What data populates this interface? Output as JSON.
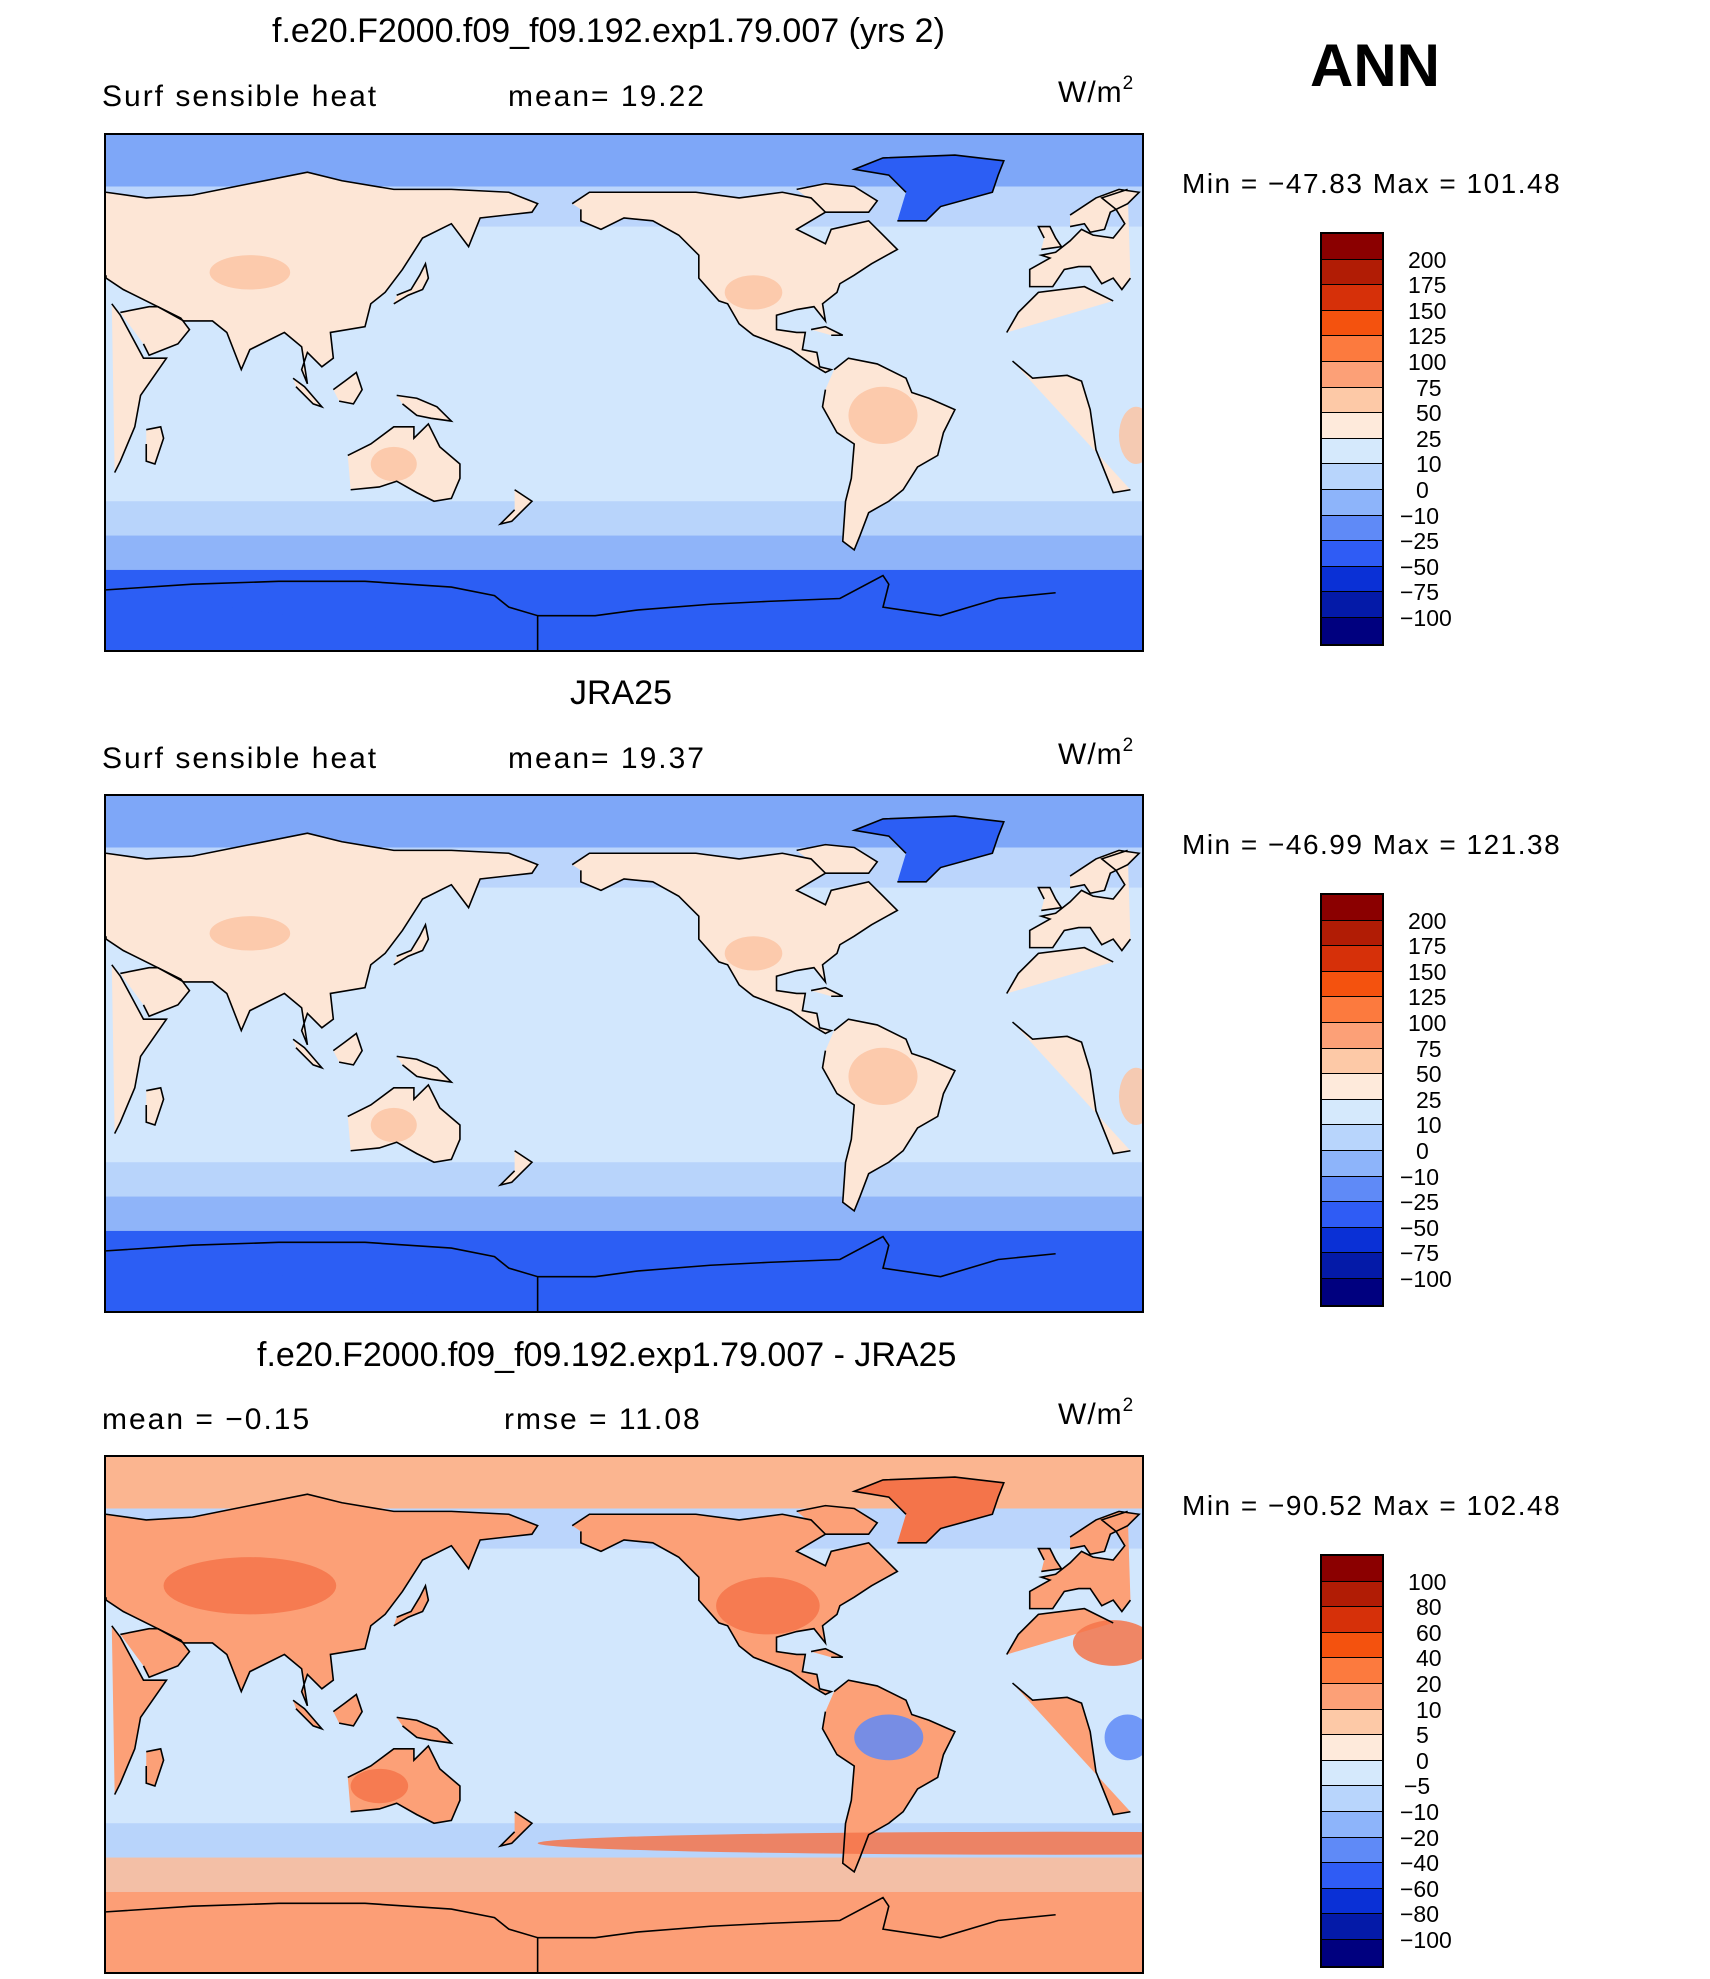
{
  "season": "ANN",
  "panels": [
    {
      "title": "f.e20.F2000.f09_f09.192.exp1.79.007 (yrs 2)",
      "left_label": "Surf sensible heat",
      "stat1": "mean=   19.22",
      "stat2": "",
      "unit": "W/m",
      "unit_sup": "2",
      "minmax": "Min  =  −47.83  Max  =  101.48",
      "colorbar": {
        "labels": [
          "200",
          "175",
          "150",
          "125",
          "100",
          "75",
          "50",
          "25",
          "10",
          "0",
          "−10",
          "−25",
          "−50",
          "−75",
          "−100"
        ],
        "colors": [
          "#8b0000",
          "#b11c05",
          "#d63009",
          "#f4520e",
          "#fc7a3e",
          "#fca077",
          "#fdc9a7",
          "#feeadb",
          "#d5e9fc",
          "#b8d5fc",
          "#8db4fa",
          "#5f8af7",
          "#2f5cf5",
          "#0a30d6",
          "#041aa8",
          "#00007f"
        ]
      },
      "map_colors": {
        "ocean": "#d2e7fd",
        "ocean_low": "#b5d1fb",
        "high_lat": "#7ea7f8",
        "polar": "#2c5ef4",
        "land": "#fde6d6",
        "warm": "#fcc4a4",
        "hot": "#fb9d74"
      }
    },
    {
      "title": "JRA25",
      "left_label": "Surf sensible heat",
      "stat1": "mean=   19.37",
      "stat2": "",
      "unit": "W/m",
      "unit_sup": "2",
      "minmax": "Min  =  −46.99  Max  =  121.38",
      "colorbar": {
        "labels": [
          "200",
          "175",
          "150",
          "125",
          "100",
          "75",
          "50",
          "25",
          "10",
          "0",
          "−10",
          "−25",
          "−50",
          "−75",
          "−100"
        ],
        "colors": [
          "#8b0000",
          "#b11c05",
          "#d63009",
          "#f4520e",
          "#fc7a3e",
          "#fca077",
          "#fdc9a7",
          "#feeadb",
          "#d5e9fc",
          "#b8d5fc",
          "#8db4fa",
          "#5f8af7",
          "#2f5cf5",
          "#0a30d6",
          "#041aa8",
          "#00007f"
        ]
      },
      "map_colors": {
        "ocean": "#d2e7fd",
        "ocean_low": "#b5d1fb",
        "high_lat": "#7ea7f8",
        "polar": "#2c5ef4",
        "land": "#fde6d6",
        "warm": "#fcc4a4",
        "hot": "#fb9d74"
      }
    },
    {
      "title": "f.e20.F2000.f09_f09.192.exp1.79.007 - JRA25",
      "left_label": "mean =    −0.15",
      "stat1": "rmse  =    11.08",
      "stat2": "",
      "unit": "W/m",
      "unit_sup": "2",
      "minmax": "Min  =  −90.52  Max  =  102.48",
      "colorbar": {
        "labels": [
          "100",
          "80",
          "60",
          "40",
          "20",
          "10",
          "5",
          "0",
          "−5",
          "−10",
          "−20",
          "−40",
          "−60",
          "−80",
          "−100"
        ],
        "colors": [
          "#8b0000",
          "#b11c05",
          "#d63009",
          "#f4520e",
          "#fc7a3e",
          "#fca077",
          "#fdc9a7",
          "#feeadb",
          "#d5e9fc",
          "#b8d5fc",
          "#8db4fa",
          "#5f8af7",
          "#2f5cf5",
          "#0a30d6",
          "#041aa8",
          "#00007f"
        ]
      },
      "map_colors": {
        "ocean": "#d2e7fd",
        "ocean_low": "#b5d1fb",
        "high_lat": "#fbb590",
        "polar": "#fc9e76",
        "land": "#fca077",
        "warm": "#f4744a",
        "hot": "#5f8af7"
      }
    }
  ]
}
